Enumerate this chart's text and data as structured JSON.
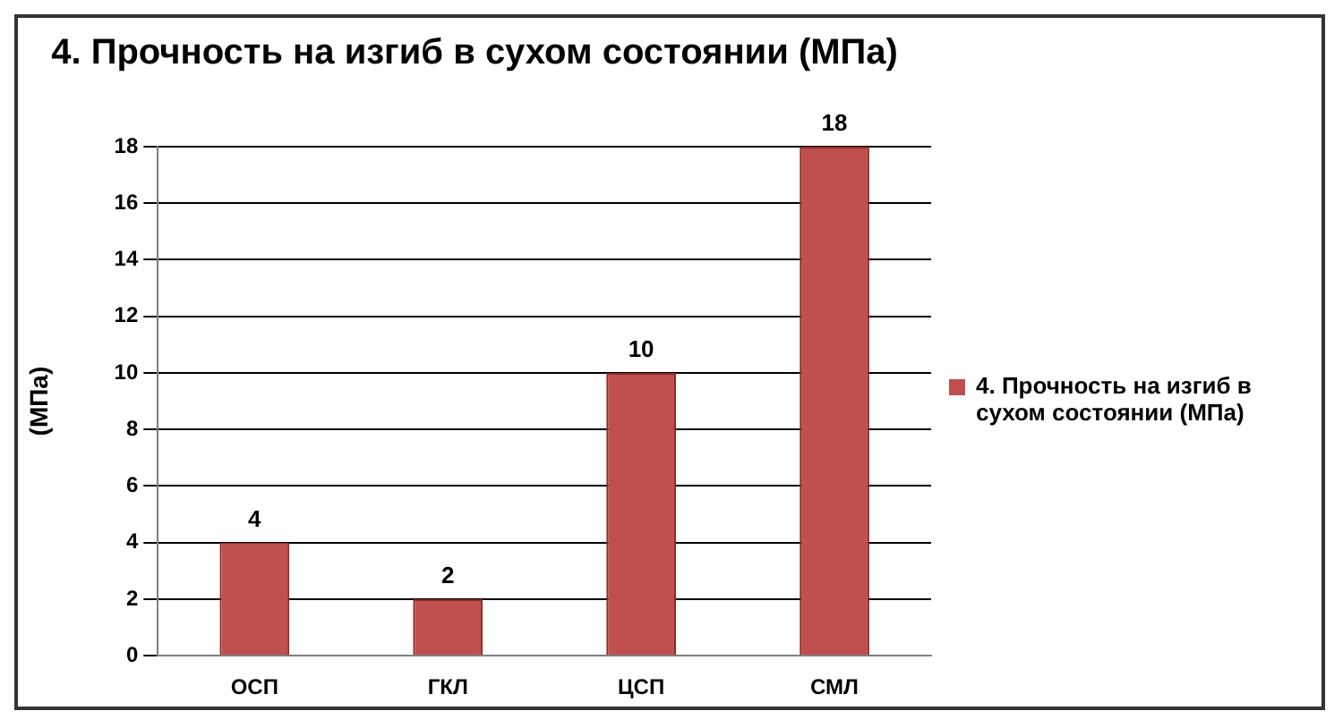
{
  "chart_data": {
    "type": "bar",
    "title": "4. Прочность на изгиб в сухом состоянии (МПа)",
    "ylabel": "(МПа)",
    "categories": [
      "ОСП",
      "ГКЛ",
      "ЦСП",
      "СМЛ"
    ],
    "series": [
      {
        "name": "4. Прочность на изгиб в сухом состоянии (МПа)",
        "color": "#c0504d",
        "values": [
          4,
          2,
          10,
          18
        ]
      }
    ],
    "ylim": [
      0,
      18
    ],
    "yticks": [
      0,
      2,
      4,
      6,
      8,
      10,
      12,
      14,
      16,
      18
    ],
    "grid": "y",
    "legend": "right",
    "data_labels": true
  }
}
